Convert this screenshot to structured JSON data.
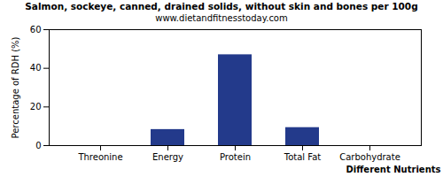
{
  "chart_data": {
    "type": "bar",
    "title": "Salmon, sockeye, canned, drained solids, without skin and bones per 100g",
    "subtitle": "www.dietandfitnesstoday.com",
    "x_label": "Different Nutrients",
    "y_label": "Percentage of RDH (%)",
    "categories": [
      "Threonine",
      "Energy",
      "Protein",
      "Total Fat",
      "Carbohydrate"
    ],
    "values": [
      0,
      8.3,
      47,
      9.3,
      0
    ],
    "color": "#233a8b",
    "ylim": [
      0,
      60
    ],
    "yticks": [
      0,
      20,
      40,
      60
    ],
    "grid": false
  }
}
